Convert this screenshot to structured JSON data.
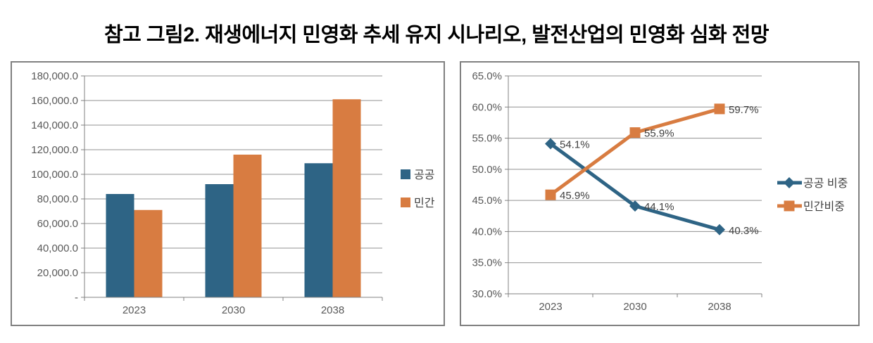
{
  "title": "참고 그림2. 재생에너지 민영화 추세 유지 시나리오, 발전산업의 민영화 심화 전망",
  "chart_data": [
    {
      "type": "bar",
      "title": "",
      "categories": [
        "2023",
        "2030",
        "2038"
      ],
      "series": [
        {
          "name": "공공",
          "color": "#2E6485",
          "values": [
            84000,
            92000,
            109000
          ]
        },
        {
          "name": "민간",
          "color": "#D87C41",
          "values": [
            71000,
            116000,
            161000
          ]
        }
      ],
      "xlabel": "",
      "ylabel": "",
      "ylim": [
        0,
        180000
      ],
      "grid": true,
      "legend_position": "right",
      "yticks": [
        {
          "value": 180000,
          "label": "180,000.0"
        },
        {
          "value": 160000,
          "label": "160,000.0"
        },
        {
          "value": 140000,
          "label": "140,000.0"
        },
        {
          "value": 120000,
          "label": "120,000.0"
        },
        {
          "value": 100000,
          "label": "100,000.0"
        },
        {
          "value": 80000,
          "label": "80,000.0"
        },
        {
          "value": 60000,
          "label": "60,000.0"
        },
        {
          "value": 40000,
          "label": "40,000.0"
        },
        {
          "value": 20000,
          "label": "20,000.0"
        },
        {
          "value": 0,
          "label": "-"
        }
      ]
    },
    {
      "type": "line",
      "title": "",
      "categories": [
        "2023",
        "2030",
        "2038"
      ],
      "series": [
        {
          "name": "공공 비중",
          "color": "#2E6485",
          "marker": "diamond",
          "values": [
            54.1,
            44.1,
            40.3
          ],
          "labels": [
            "54.1%",
            "44.1%",
            "40.3%"
          ]
        },
        {
          "name": "민간비중",
          "color": "#D87C41",
          "marker": "square",
          "values": [
            45.9,
            55.9,
            59.7
          ],
          "labels": [
            "45.9%",
            "55.9%",
            "59.7%"
          ]
        }
      ],
      "xlabel": "",
      "ylabel": "",
      "ylim": [
        30,
        65
      ],
      "grid": true,
      "legend_position": "right",
      "yticks": [
        {
          "value": 65,
          "label": "65.0%"
        },
        {
          "value": 60,
          "label": "60.0%"
        },
        {
          "value": 55,
          "label": "55.0%"
        },
        {
          "value": 50,
          "label": "50.0%"
        },
        {
          "value": 45,
          "label": "45.0%"
        },
        {
          "value": 40,
          "label": "40.0%"
        },
        {
          "value": 35,
          "label": "35.0%"
        },
        {
          "value": 30,
          "label": "30.0%"
        }
      ]
    }
  ]
}
